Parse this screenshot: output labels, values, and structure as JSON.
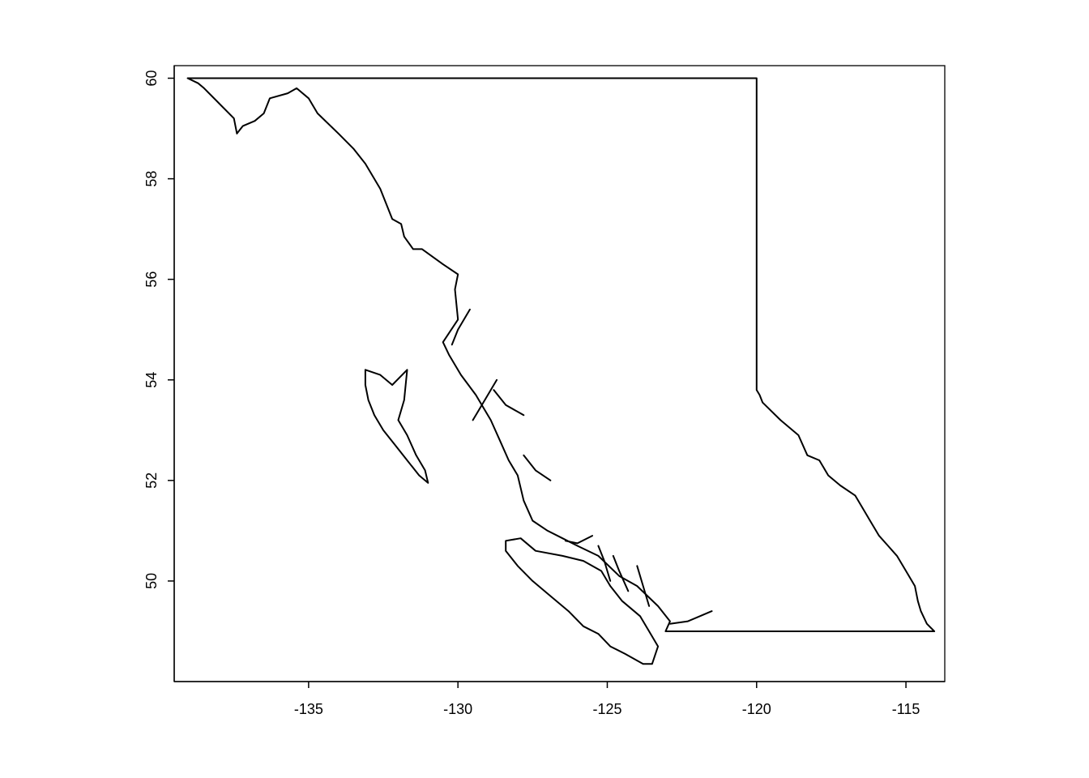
{
  "chart_data": {
    "type": "map",
    "title": "",
    "xlabel": "",
    "ylabel": "",
    "xlim": [
      -139.5,
      -113.7
    ],
    "ylim": [
      48.0,
      60.25
    ],
    "x_ticks": [
      {
        "value": -135,
        "label": "-135"
      },
      {
        "value": -130,
        "label": "-130"
      },
      {
        "value": -125,
        "label": "-125"
      },
      {
        "value": -120,
        "label": "-120"
      },
      {
        "value": -115,
        "label": "-115"
      }
    ],
    "y_ticks": [
      {
        "value": 50,
        "label": "50"
      },
      {
        "value": 52,
        "label": "52"
      },
      {
        "value": 54,
        "label": "54"
      },
      {
        "value": 56,
        "label": "56"
      },
      {
        "value": 58,
        "label": "58"
      },
      {
        "value": 60,
        "label": "60"
      }
    ],
    "shapes": [
      {
        "name": "mainland-outline",
        "points": [
          [
            -139.05,
            60.0
          ],
          [
            -120.0,
            60.0
          ],
          [
            -120.0,
            53.8
          ],
          [
            -119.9,
            53.7
          ],
          [
            -119.8,
            53.55
          ],
          [
            -119.2,
            53.2
          ],
          [
            -118.6,
            52.9
          ],
          [
            -118.3,
            52.5
          ],
          [
            -117.9,
            52.4
          ],
          [
            -117.6,
            52.1
          ],
          [
            -117.2,
            51.9
          ],
          [
            -116.7,
            51.7
          ],
          [
            -116.4,
            51.4
          ],
          [
            -116.2,
            51.2
          ],
          [
            -115.9,
            50.9
          ],
          [
            -115.6,
            50.7
          ],
          [
            -115.3,
            50.5
          ],
          [
            -115.0,
            50.2
          ],
          [
            -114.7,
            49.9
          ],
          [
            -114.6,
            49.6
          ],
          [
            -114.5,
            49.4
          ],
          [
            -114.3,
            49.15
          ],
          [
            -114.05,
            49.0
          ],
          [
            -123.05,
            49.0
          ],
          [
            -122.9,
            49.2
          ],
          [
            -123.3,
            49.5
          ],
          [
            -124.0,
            49.9
          ],
          [
            -124.6,
            50.1
          ],
          [
            -125.3,
            50.5
          ],
          [
            -126.0,
            50.7
          ],
          [
            -126.5,
            50.85
          ],
          [
            -127.0,
            51.0
          ],
          [
            -127.5,
            51.2
          ],
          [
            -127.8,
            51.6
          ],
          [
            -128.0,
            52.1
          ],
          [
            -128.3,
            52.4
          ],
          [
            -128.6,
            52.8
          ],
          [
            -128.9,
            53.2
          ],
          [
            -129.4,
            53.7
          ],
          [
            -129.9,
            54.1
          ],
          [
            -130.3,
            54.5
          ],
          [
            -130.5,
            54.75
          ],
          [
            -130.0,
            55.2
          ],
          [
            -130.1,
            55.8
          ],
          [
            -130.0,
            56.1
          ],
          [
            -130.5,
            56.3
          ],
          [
            -131.2,
            56.6
          ],
          [
            -131.5,
            56.6
          ],
          [
            -131.8,
            56.85
          ],
          [
            -131.9,
            57.1
          ],
          [
            -132.2,
            57.2
          ],
          [
            -132.6,
            57.8
          ],
          [
            -133.1,
            58.3
          ],
          [
            -133.5,
            58.6
          ],
          [
            -134.0,
            58.9
          ],
          [
            -134.7,
            59.3
          ],
          [
            -135.0,
            59.6
          ],
          [
            -135.4,
            59.8
          ],
          [
            -135.7,
            59.7
          ],
          [
            -136.3,
            59.6
          ],
          [
            -136.5,
            59.3
          ],
          [
            -136.8,
            59.15
          ],
          [
            -137.2,
            59.05
          ],
          [
            -137.4,
            58.9
          ],
          [
            -137.5,
            59.2
          ],
          [
            -138.0,
            59.5
          ],
          [
            -138.5,
            59.8
          ],
          [
            -138.7,
            59.9
          ],
          [
            -139.05,
            60.0
          ]
        ]
      },
      {
        "name": "haida-gwaii-outline",
        "points": [
          [
            -133.1,
            54.2
          ],
          [
            -132.6,
            54.1
          ],
          [
            -132.2,
            53.9
          ],
          [
            -131.7,
            54.2
          ],
          [
            -131.8,
            53.6
          ],
          [
            -132.0,
            53.2
          ],
          [
            -131.7,
            52.9
          ],
          [
            -131.4,
            52.5
          ],
          [
            -131.1,
            52.2
          ],
          [
            -131.0,
            51.95
          ],
          [
            -131.3,
            52.1
          ],
          [
            -131.7,
            52.4
          ],
          [
            -132.1,
            52.7
          ],
          [
            -132.5,
            53.0
          ],
          [
            -132.8,
            53.3
          ],
          [
            -133.0,
            53.6
          ],
          [
            -133.1,
            53.9
          ],
          [
            -133.1,
            54.2
          ]
        ]
      },
      {
        "name": "vancouver-island-outline",
        "points": [
          [
            -128.4,
            50.8
          ],
          [
            -127.9,
            50.85
          ],
          [
            -127.4,
            50.6
          ],
          [
            -126.5,
            50.5
          ],
          [
            -125.8,
            50.4
          ],
          [
            -125.2,
            50.2
          ],
          [
            -124.9,
            49.9
          ],
          [
            -124.5,
            49.6
          ],
          [
            -123.9,
            49.3
          ],
          [
            -123.6,
            49.0
          ],
          [
            -123.3,
            48.7
          ],
          [
            -123.5,
            48.35
          ],
          [
            -123.8,
            48.35
          ],
          [
            -124.4,
            48.55
          ],
          [
            -124.9,
            48.7
          ],
          [
            -125.3,
            48.95
          ],
          [
            -125.8,
            49.1
          ],
          [
            -126.3,
            49.4
          ],
          [
            -126.9,
            49.7
          ],
          [
            -127.5,
            50.0
          ],
          [
            -128.0,
            50.3
          ],
          [
            -128.4,
            50.6
          ],
          [
            -128.4,
            50.8
          ]
        ]
      },
      {
        "name": "coastal-inlets",
        "lines": [
          [
            [
              -129.6,
              55.4
            ],
            [
              -130.0,
              55.0
            ],
            [
              -130.2,
              54.7
            ]
          ],
          [
            [
              -128.7,
              54.0
            ],
            [
              -129.2,
              53.5
            ],
            [
              -129.5,
              53.2
            ]
          ],
          [
            [
              -127.8,
              53.3
            ],
            [
              -128.4,
              53.5
            ],
            [
              -128.8,
              53.8
            ]
          ],
          [
            [
              -126.9,
              52.0
            ],
            [
              -127.4,
              52.2
            ],
            [
              -127.8,
              52.5
            ]
          ],
          [
            [
              -125.5,
              50.9
            ],
            [
              -126.0,
              50.75
            ],
            [
              -126.4,
              50.8
            ]
          ],
          [
            [
              -124.9,
              50.0
            ],
            [
              -125.1,
              50.4
            ],
            [
              -125.3,
              50.7
            ]
          ],
          [
            [
              -124.3,
              49.8
            ],
            [
              -124.6,
              50.2
            ],
            [
              -124.8,
              50.5
            ]
          ],
          [
            [
              -123.6,
              49.5
            ],
            [
              -123.8,
              49.9
            ],
            [
              -124.0,
              50.3
            ]
          ],
          [
            [
              -122.9,
              49.15
            ],
            [
              -122.3,
              49.2
            ],
            [
              -121.5,
              49.4
            ]
          ]
        ]
      }
    ]
  }
}
